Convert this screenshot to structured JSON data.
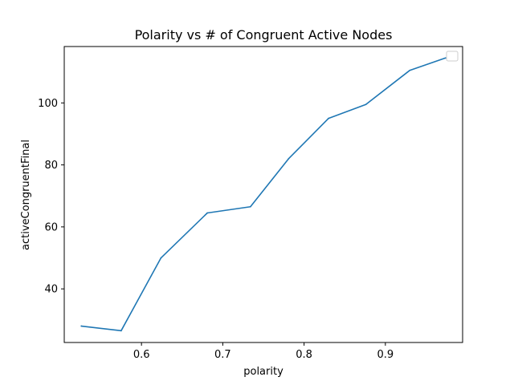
{
  "chart_data": {
    "type": "line",
    "title": "Polarity vs # of Congruent Active Nodes",
    "xlabel": "polarity",
    "ylabel": "activeCongruentFinal",
    "xlim": [
      0.505,
      0.995
    ],
    "ylim": [
      22.7,
      118.2
    ],
    "xticks": [
      0.6,
      0.7,
      0.8,
      0.9
    ],
    "xtick_labels": [
      "0.6",
      "0.7",
      "0.8",
      "0.9"
    ],
    "yticks": [
      40,
      60,
      80,
      100
    ],
    "ytick_labels": [
      "40",
      "60",
      "80",
      "100"
    ],
    "grid": false,
    "legend": {
      "placement": "top-right",
      "entries": []
    },
    "series": [
      {
        "color": "#1f77b4",
        "x": [
          0.526,
          0.575,
          0.624,
          0.681,
          0.734,
          0.781,
          0.83,
          0.876,
          0.93,
          0.974
        ],
        "y": [
          28.0,
          26.5,
          50.0,
          64.5,
          66.5,
          82.0,
          95.0,
          99.5,
          110.5,
          114.5
        ]
      }
    ]
  }
}
